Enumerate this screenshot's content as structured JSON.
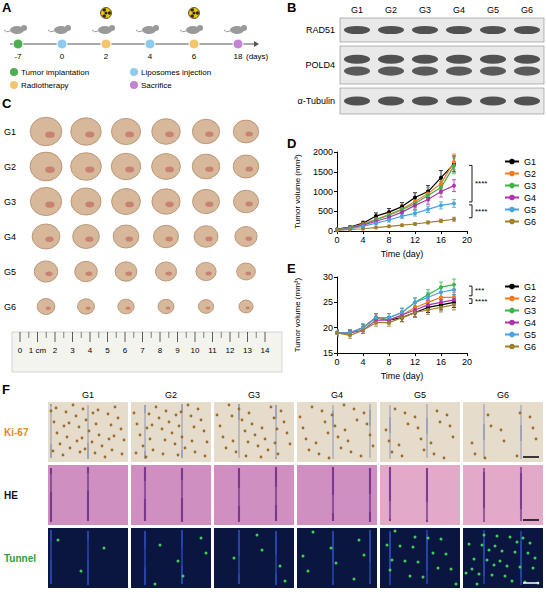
{
  "panels": {
    "A": {
      "letter": "A",
      "unit": "(days)",
      "events": [
        {
          "day": -7,
          "event": "Tumor implantation"
        },
        {
          "day": 0,
          "event": "Liposomes injection"
        },
        {
          "day": 2,
          "event": "Radiotherapy"
        },
        {
          "day": 4,
          "event": "Liposomes injection"
        },
        {
          "day": 6,
          "event": "Radiotherapy"
        },
        {
          "day": 18,
          "event": "Sacrifice"
        }
      ],
      "legend": [
        {
          "label": "Tumor implantation",
          "color": "#4caf50"
        },
        {
          "label": "Liposomes injection",
          "color": "#8ecbef"
        },
        {
          "label": "Radiotherapy",
          "color": "#f3c66e"
        },
        {
          "label": "Sacrifice",
          "color": "#c583d4"
        }
      ]
    },
    "B": {
      "letter": "B",
      "groups": [
        "G1",
        "G2",
        "G3",
        "G4",
        "G5",
        "G6"
      ],
      "rows": [
        "RAD51",
        "POLD4",
        "α-Tubulin"
      ]
    },
    "C": {
      "letter": "C",
      "groups": [
        "G1",
        "G2",
        "G3",
        "G4",
        "G5",
        "G6"
      ],
      "ruler": [
        0,
        {
          "value": 1,
          "label": "1 cm"
        },
        2,
        3,
        4,
        5,
        6,
        7,
        8,
        9,
        10,
        11,
        12,
        13,
        14
      ]
    },
    "F": {
      "letter": "F",
      "groups": [
        "G1",
        "G2",
        "G3",
        "G4",
        "G5",
        "G6"
      ],
      "rows": [
        {
          "label": "Ki-67",
          "color": "#e08a1e"
        },
        {
          "label": "HE",
          "color": "#111111"
        },
        {
          "label": "Tunnel",
          "color": "#2e9e3e"
        }
      ]
    }
  },
  "chart_data": [
    {
      "panel": "D",
      "type": "line",
      "xlabel": "Time (day)",
      "ylabel": "Tumor volume (mm³)",
      "x": [
        0,
        2,
        4,
        6,
        8,
        10,
        12,
        14,
        16,
        18
      ],
      "xlim": [
        0,
        20
      ],
      "xticks": [
        0,
        4,
        8,
        12,
        16,
        20
      ],
      "ylim": [
        0,
        2000
      ],
      "yticks": [
        0,
        500,
        1000,
        1500,
        2000
      ],
      "grid": false,
      "legend": "right",
      "marker": "circle",
      "line_style": "solid",
      "series": [
        {
          "name": "G1",
          "color": "#000000",
          "values": [
            50,
            100,
            200,
            380,
            480,
            620,
            850,
            1000,
            1350,
            1700
          ],
          "errors": [
            10,
            30,
            50,
            80,
            90,
            100,
            120,
            150,
            180,
            200
          ]
        },
        {
          "name": "G2",
          "color": "#f47a20",
          "values": [
            40,
            90,
            180,
            300,
            420,
            560,
            750,
            950,
            1200,
            1750
          ],
          "errors": [
            10,
            20,
            40,
            60,
            80,
            100,
            120,
            150,
            160,
            200
          ]
        },
        {
          "name": "G3",
          "color": "#3cb44b",
          "values": [
            40,
            90,
            160,
            290,
            400,
            540,
            700,
            900,
            1100,
            1650
          ],
          "errors": [
            10,
            20,
            30,
            50,
            70,
            90,
            110,
            130,
            150,
            200
          ]
        },
        {
          "name": "G4",
          "color": "#b030b0",
          "values": [
            30,
            70,
            150,
            250,
            350,
            480,
            650,
            800,
            1000,
            1150
          ],
          "errors": [
            10,
            20,
            30,
            50,
            60,
            80,
            100,
            120,
            140,
            150
          ]
        },
        {
          "name": "G5",
          "color": "#4aa3df",
          "values": [
            30,
            60,
            120,
            200,
            280,
            380,
            450,
            550,
            650,
            700
          ],
          "errors": [
            10,
            15,
            25,
            40,
            50,
            60,
            70,
            80,
            90,
            100
          ]
        },
        {
          "name": "G6",
          "color": "#a0822d",
          "values": [
            20,
            40,
            60,
            90,
            120,
            150,
            180,
            220,
            260,
            300
          ],
          "errors": [
            5,
            10,
            10,
            15,
            20,
            25,
            30,
            35,
            40,
            50
          ]
        }
      ],
      "annotations": [
        {
          "text": "****",
          "from": "G1",
          "to": "G5"
        },
        {
          "text": "****",
          "from": "G5",
          "to": "G6"
        }
      ]
    },
    {
      "panel": "E",
      "type": "line",
      "xlabel": "Time (day)",
      "ylabel": "Tumor volume (mm³)",
      "x": [
        0,
        2,
        4,
        6,
        8,
        10,
        12,
        14,
        16,
        18
      ],
      "xlim": [
        0,
        20
      ],
      "xticks": [
        0,
        4,
        8,
        12,
        16,
        20
      ],
      "ylim": [
        15,
        30
      ],
      "yticks": [
        15,
        20,
        25,
        30
      ],
      "grid": false,
      "legend": "right",
      "marker": "circle",
      "line_style": "solid",
      "series": [
        {
          "name": "G1",
          "color": "#000000",
          "values": [
            19,
            19,
            20,
            22,
            21.5,
            22,
            23,
            24,
            24.5,
            25
          ],
          "errors": [
            0.6,
            0.5,
            0.7,
            0.8,
            0.7,
            0.8,
            0.9,
            1.0,
            1.0,
            1.0
          ]
        },
        {
          "name": "G2",
          "color": "#f47a20",
          "values": [
            19,
            19,
            20,
            22,
            21.5,
            22.5,
            24,
            25,
            26,
            26
          ],
          "errors": [
            0.5,
            0.5,
            0.6,
            0.7,
            0.7,
            0.8,
            0.8,
            0.9,
            1.0,
            1.0
          ]
        },
        {
          "name": "G3",
          "color": "#3cb44b",
          "values": [
            19,
            19,
            20,
            22,
            22,
            23,
            25,
            26.5,
            28,
            28.5
          ],
          "errors": [
            0.6,
            0.6,
            0.7,
            0.8,
            0.8,
            0.9,
            0.9,
            1.0,
            1.0,
            1.1
          ]
        },
        {
          "name": "G4",
          "color": "#b030b0",
          "values": [
            19,
            19,
            19.5,
            21.5,
            21.5,
            22.5,
            23.5,
            24.5,
            25,
            25.5
          ],
          "errors": [
            0.5,
            0.5,
            0.6,
            0.7,
            0.7,
            0.7,
            0.8,
            0.9,
            0.9,
            1.0
          ]
        },
        {
          "name": "G5",
          "color": "#4aa3df",
          "values": [
            19,
            19,
            20,
            22,
            22,
            23,
            25,
            26,
            27,
            27.5
          ],
          "errors": [
            0.6,
            0.5,
            0.7,
            0.8,
            0.8,
            0.8,
            0.9,
            1.0,
            1.0,
            1.0
          ]
        },
        {
          "name": "G6",
          "color": "#a0822d",
          "values": [
            19,
            18.5,
            19.5,
            21,
            21,
            22,
            23,
            23.5,
            24,
            24.5
          ],
          "errors": [
            0.6,
            0.6,
            0.6,
            0.7,
            0.7,
            0.8,
            0.8,
            0.9,
            0.9,
            1.0
          ]
        }
      ],
      "annotations": [
        {
          "text": "***",
          "from": "G3",
          "to": "G2"
        },
        {
          "text": "****",
          "from": "G2",
          "to": "G6"
        }
      ]
    }
  ]
}
